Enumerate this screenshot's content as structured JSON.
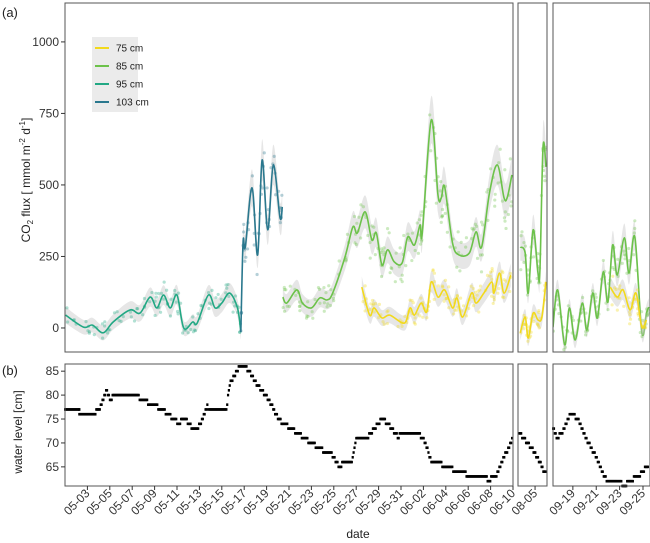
{
  "chart_data": [
    {
      "type": "line",
      "panel_label": "(a)",
      "ylabel": "CO2 flux [ mmol m-2 d-1]",
      "ylabel_parts": {
        "pre": "CO",
        "sub": "2",
        "mid": " flux [ mmol m",
        "sup1": "-2",
        "mid2": " d",
        "sup2": "-1",
        "post": "]"
      },
      "ylim": [
        -84,
        1136
      ],
      "yticks": [
        0,
        250,
        500,
        750,
        1000
      ],
      "legend": {
        "placement": "top-left",
        "entries": [
          {
            "label": "75 cm",
            "color": "#f2d91c"
          },
          {
            "label": "85 cm",
            "color": "#6cc24a"
          },
          {
            "label": "95 cm",
            "color": "#22a884"
          },
          {
            "label": "103 cm",
            "color": "#2a788e"
          }
        ]
      },
      "panels": [
        {
          "x_unit": "days since 05-01",
          "xlim": [
            0,
            40
          ],
          "series": {
            "95 cm": [
              [
                0.05,
                45
              ],
              [
                1.65,
                3
              ],
              [
                2.45,
                10
              ],
              [
                3.4,
                -17
              ],
              [
                4.3,
                21
              ],
              [
                5.8,
                63
              ],
              [
                6.7,
                52
              ],
              [
                7.6,
                108
              ],
              [
                8.2,
                70
              ],
              [
                8.8,
                115
              ],
              [
                9.4,
                70
              ],
              [
                10,
                115
              ],
              [
                10.6,
                0
              ],
              [
                11.4,
                21
              ],
              [
                11.8,
                17
              ],
              [
                12.8,
                115
              ],
              [
                13.4,
                70
              ],
              [
                14,
                87
              ],
              [
                14.7,
                122
              ],
              [
                15.4,
                70
              ],
              [
                15.7,
                -14
              ]
            ],
            "103 cm": [
              [
                15.7,
                -14
              ],
              [
                15.9,
                300
              ],
              [
                16.1,
                283
              ],
              [
                16.7,
                490
              ],
              [
                17.2,
                255
              ],
              [
                17.6,
                587
              ],
              [
                18.1,
                343
              ],
              [
                18.6,
                570
              ],
              [
                19.2,
                385
              ],
              [
                19.4,
                423
              ]
            ],
            "85 cm": [
              [
                19.45,
                108
              ],
              [
                19.8,
                87
              ],
              [
                20.7,
                133
              ],
              [
                21.2,
                87
              ],
              [
                22.0,
                70
              ],
              [
                22.75,
                105
              ],
              [
                23.4,
                98
              ],
              [
                23.9,
                122
              ],
              [
                25.0,
                248
              ],
              [
                25.7,
                353
              ],
              [
                26.1,
                332
              ],
              [
                26.8,
                406
              ],
              [
                27.4,
                308
              ],
              [
                27.8,
                332
              ],
              [
                28.3,
                220
              ],
              [
                28.8,
                273
              ],
              [
                29.4,
                231
              ],
              [
                30.1,
                227
              ],
              [
                30.6,
                318
              ],
              [
                31.2,
                290
              ],
              [
                31.7,
                360
              ],
              [
                31.9,
                332
              ],
              [
                32.7,
                727
              ],
              [
                33.3,
                465
              ],
              [
                33.6,
                455
              ],
              [
                33.9,
                493
              ],
              [
                34.6,
                297
              ],
              [
                35.2,
                255
              ],
              [
                36.1,
                262
              ],
              [
                36.7,
                336
              ],
              [
                37.2,
                283
              ],
              [
                37.9,
                472
              ],
              [
                38.6,
                570
              ],
              [
                39.2,
                455
              ],
              [
                39.5,
                458
              ],
              [
                39.9,
                535
              ]
            ],
            "75 cm": [
              [
                26.5,
                143
              ],
              [
                27.2,
                45
              ],
              [
                27.6,
                70
              ],
              [
                28.3,
                35
              ],
              [
                29.0,
                45
              ],
              [
                30.3,
                17
              ],
              [
                30.8,
                70
              ],
              [
                31.2,
                45
              ],
              [
                31.8,
                87
              ],
              [
                32.3,
                56
              ],
              [
                32.7,
                161
              ],
              [
                33.3,
                108
              ],
              [
                33.9,
                133
              ],
              [
                34.6,
                70
              ],
              [
                35.0,
                105
              ],
              [
                35.5,
                38
              ],
              [
                36.3,
                122
              ],
              [
                36.7,
                87
              ],
              [
                37.4,
                122
              ],
              [
                38.1,
                161
              ],
              [
                38.3,
                122
              ],
              [
                38.8,
                192
              ],
              [
                39.2,
                122
              ],
              [
                39.8,
                185
              ]
            ]
          }
        },
        {
          "x_unit": "day of August",
          "xlim": [
            3.5,
            6.05
          ],
          "series": {
            "85 cm": [
              [
                3.7,
                283
              ],
              [
                4.13,
                262
              ],
              [
                4.4,
                122
              ],
              [
                4.83,
                343
              ],
              [
                5.26,
                192
              ],
              [
                5.43,
                203
              ],
              [
                5.7,
                633
              ],
              [
                5.96,
                563
              ]
            ],
            "75 cm": [
              [
                3.7,
                -17
              ],
              [
                4.13,
                38
              ],
              [
                4.4,
                -35
              ],
              [
                4.83,
                52
              ],
              [
                5.26,
                28
              ],
              [
                5.6,
                38
              ],
              [
                5.96,
                161
              ]
            ]
          }
        },
        {
          "x_unit": "day of September",
          "xlim": [
            17.3,
            25.6
          ],
          "series": {
            "85 cm": [
              [
                17.3,
                3
              ],
              [
                17.7,
                133
              ],
              [
                18.3,
                -59
              ],
              [
                18.7,
                70
              ],
              [
                19.2,
                -42
              ],
              [
                19.8,
                87
              ],
              [
                20.2,
                -7
              ],
              [
                20.7,
                122
              ],
              [
                21.1,
                35
              ],
              [
                21.6,
                196
              ],
              [
                22.0,
                91
              ],
              [
                22.4,
                290
              ],
              [
                22.8,
                185
              ],
              [
                23.4,
                315
              ],
              [
                23.8,
                192
              ],
              [
                24.3,
                318
              ],
              [
                24.9,
                -14
              ],
              [
                25.3,
                52
              ],
              [
                25.5,
                73
              ]
            ],
            "75 cm": [
              [
                22.2,
                143
              ],
              [
                22.8,
                108
              ],
              [
                23.3,
                133
              ],
              [
                23.9,
                63
              ],
              [
                24.4,
                122
              ],
              [
                24.9,
                3
              ],
              [
                25.3,
                28
              ]
            ]
          }
        }
      ]
    },
    {
      "type": "line",
      "panel_label": "(b)",
      "ylabel": "water level [cm]",
      "xlabel": "date",
      "ylim": [
        61,
        86.5
      ],
      "yticks": [
        65,
        70,
        75,
        80,
        85
      ],
      "color": "#000000",
      "panels": [
        {
          "x_unit": "days since 05-01",
          "xlim": [
            0,
            40
          ],
          "xticks": [
            {
              "x": 2,
              "label": "05-03"
            },
            {
              "x": 4,
              "label": "05-05"
            },
            {
              "x": 6,
              "label": "05-07"
            },
            {
              "x": 8,
              "label": "05-09"
            },
            {
              "x": 10,
              "label": "05-11"
            },
            {
              "x": 12,
              "label": "05-13"
            },
            {
              "x": 14,
              "label": "05-15"
            },
            {
              "x": 16,
              "label": "05-17"
            },
            {
              "x": 18,
              "label": "05-19"
            },
            {
              "x": 20,
              "label": "05-21"
            },
            {
              "x": 22,
              "label": "05-23"
            },
            {
              "x": 24,
              "label": "05-25"
            },
            {
              "x": 26,
              "label": "05-27"
            },
            {
              "x": 28,
              "label": "05-29"
            },
            {
              "x": 30,
              "label": "05-31"
            },
            {
              "x": 32,
              "label": "06-02"
            },
            {
              "x": 34,
              "label": "06-04"
            },
            {
              "x": 36,
              "label": "06-06"
            },
            {
              "x": 38,
              "label": "06-08"
            },
            {
              "x": 40,
              "label": "06-10"
            }
          ],
          "values": [
            [
              0,
              77
            ],
            [
              1.26,
              77
            ],
            [
              1.27,
              76
            ],
            [
              2.55,
              76
            ],
            [
              3.1,
              77.4
            ],
            [
              3.66,
              81
            ],
            [
              4.0,
              79
            ],
            [
              4.4,
              80.2
            ],
            [
              6.4,
              80
            ],
            [
              7.0,
              78.8
            ],
            [
              7.9,
              78
            ],
            [
              8.65,
              77
            ],
            [
              9.4,
              75.6
            ],
            [
              10.1,
              74.2
            ],
            [
              10.7,
              75
            ],
            [
              11.2,
              73.5
            ],
            [
              11.8,
              73.1
            ],
            [
              12.3,
              75
            ],
            [
              12.7,
              77.7
            ],
            [
              12.9,
              77
            ],
            [
              14.4,
              76.8
            ],
            [
              14.7,
              82.3
            ],
            [
              15.5,
              85.5
            ],
            [
              16.2,
              85.8
            ],
            [
              17.1,
              82.3
            ],
            [
              18.25,
              78.8
            ],
            [
              19.0,
              75.2
            ],
            [
              19.4,
              74.2
            ],
            [
              20.1,
              73.1
            ],
            [
              20.8,
              72
            ],
            [
              21.8,
              70.3
            ],
            [
              22.7,
              68.9
            ],
            [
              23.8,
              67.5
            ],
            [
              24.5,
              65
            ],
            [
              24.9,
              66.1
            ],
            [
              25.6,
              66.1
            ],
            [
              26.0,
              71
            ],
            [
              26.9,
              71
            ],
            [
              27.9,
              73.8
            ],
            [
              28.4,
              75.2
            ],
            [
              29.2,
              72.8
            ],
            [
              29.7,
              71.4
            ],
            [
              30.3,
              72
            ],
            [
              31.6,
              72
            ],
            [
              32.1,
              70.3
            ],
            [
              32.7,
              66.1
            ],
            [
              33.2,
              66
            ],
            [
              34.0,
              65
            ],
            [
              34.9,
              64.3
            ],
            [
              35.6,
              64
            ],
            [
              36.0,
              62.9
            ],
            [
              37.5,
              62.9
            ],
            [
              37.8,
              62.2
            ],
            [
              38.6,
              63.6
            ],
            [
              39.3,
              67.5
            ],
            [
              40,
              71.4
            ]
          ]
        },
        {
          "x_unit": "day of August",
          "xlim": [
            3.5,
            6.05
          ],
          "xticks": [
            {
              "x": 5,
              "label": "08-05"
            }
          ],
          "values": [
            [
              3.6,
              72
            ],
            [
              4.2,
              70.3
            ],
            [
              4.7,
              68.9
            ],
            [
              5.25,
              66.8
            ],
            [
              5.8,
              64
            ],
            [
              6.0,
              63
            ]
          ]
        },
        {
          "x_unit": "day of September",
          "xlim": [
            17.3,
            25.6
          ],
          "xticks": [
            {
              "x": 19,
              "label": "09-19"
            },
            {
              "x": 21,
              "label": "09-21"
            },
            {
              "x": 23,
              "label": "09-23"
            },
            {
              "x": 25,
              "label": "09-25"
            }
          ],
          "values": [
            [
              17.3,
              73.1
            ],
            [
              17.6,
              71
            ],
            [
              18.1,
              72
            ],
            [
              18.8,
              76
            ],
            [
              19.4,
              75.2
            ],
            [
              19.9,
              72
            ],
            [
              20.6,
              68.9
            ],
            [
              21.3,
              65.4
            ],
            [
              21.8,
              62.5
            ],
            [
              22.7,
              62.2
            ],
            [
              23.4,
              61.1
            ],
            [
              23.95,
              62.2
            ],
            [
              24.65,
              63.2
            ],
            [
              25.5,
              65.4
            ]
          ]
        }
      ]
    }
  ]
}
